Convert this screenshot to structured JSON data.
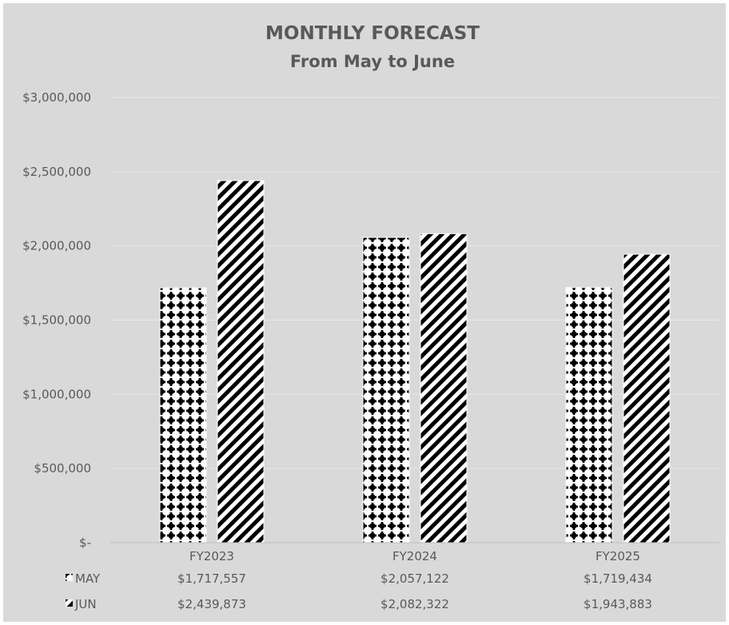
{
  "chart_data": {
    "type": "bar",
    "title": "MONTHLY FORECAST",
    "subtitle": "From May to June",
    "categories": [
      "FY2023",
      "FY2024",
      "FY2025"
    ],
    "series": [
      {
        "name": "MAY",
        "values": [
          1717557,
          2057122,
          1719434
        ],
        "value_labels": [
          "$1,717,557",
          "$2,057,122",
          "$1,719,434"
        ],
        "pattern": "dots"
      },
      {
        "name": "JUN",
        "values": [
          2439873,
          2082322,
          1943883
        ],
        "value_labels": [
          "$2,439,873",
          "$2,082,322",
          "$1,943,883"
        ],
        "pattern": "diagonal-stripes"
      }
    ],
    "ylim": [
      0,
      3000000
    ],
    "yticks": [
      0,
      500000,
      1000000,
      1500000,
      2000000,
      2500000,
      3000000
    ],
    "ytick_labels": [
      "$-",
      "$500,000",
      "$1,000,000",
      "$1,500,000",
      "$2,000,000",
      "$2,500,000",
      "$3,000,000"
    ],
    "grid": true,
    "legend": "data-table",
    "colors": {
      "background": "#d9d9d9",
      "bar_fill": "#000000",
      "bar_pattern_bg": "#ffffff",
      "text": "#595959",
      "grid": "#e6e6e6"
    }
  }
}
